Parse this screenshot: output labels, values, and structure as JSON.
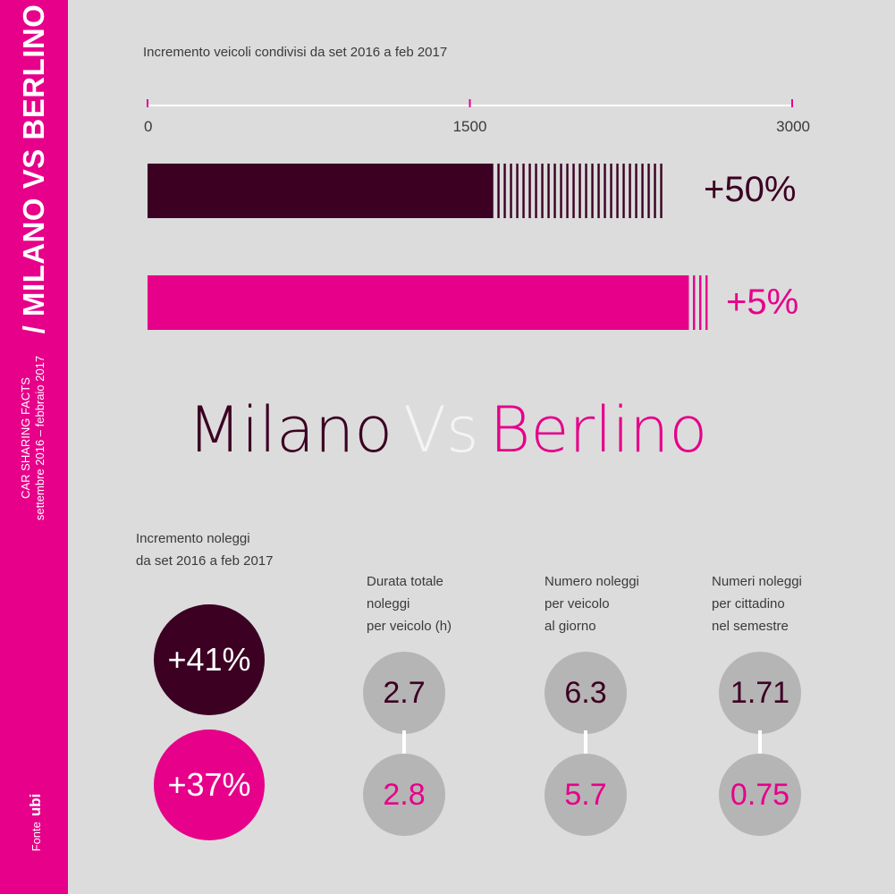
{
  "sidebar": {
    "title": "/ MILANO VS BERLINO",
    "subtitle_line1": "CAR SHARING FACTS",
    "subtitle_line2": "settembre 2016 – febbraio 2017",
    "source_label": "Fonte",
    "source_logo": "ubi"
  },
  "colors": {
    "milano": "#3b0022",
    "berlino": "#e6008a",
    "background": "#dcdcdc",
    "circle": "#b5b5b5"
  },
  "chart_data": {
    "type": "bar",
    "orientation": "horizontal",
    "title": "Incremento veicoli condivisi da set 2016 a feb 2017",
    "xlim": [
      0,
      3000
    ],
    "ticks": [
      "0",
      "1500",
      "3000"
    ],
    "series": [
      {
        "name": "Milano",
        "start": 1600,
        "end": 2400,
        "increment_label": "+50%"
      },
      {
        "name": "Berlino",
        "start": 2510,
        "end": 2630,
        "increment_label": "+5%"
      }
    ]
  },
  "headline": {
    "milano": "Milano",
    "vs": "Vs",
    "berlino": "Berlino"
  },
  "rentals": {
    "label_line1": "Incremento noleggi",
    "label_line2": "da set 2016 a feb 2017",
    "milano": "+41%",
    "berlino": "+37%"
  },
  "metrics": [
    {
      "label": [
        "Durata totale",
        "noleggi",
        "per veicolo (h)"
      ],
      "milano": "2.7",
      "berlino": "2.8"
    },
    {
      "label": [
        "Numero noleggi",
        "per veicolo",
        "al giorno"
      ],
      "milano": "6.3",
      "berlino": "5.7"
    },
    {
      "label": [
        "Numeri noleggi",
        "per cittadino",
        "nel semestre"
      ],
      "milano": "1.71",
      "berlino": "0.75"
    }
  ]
}
